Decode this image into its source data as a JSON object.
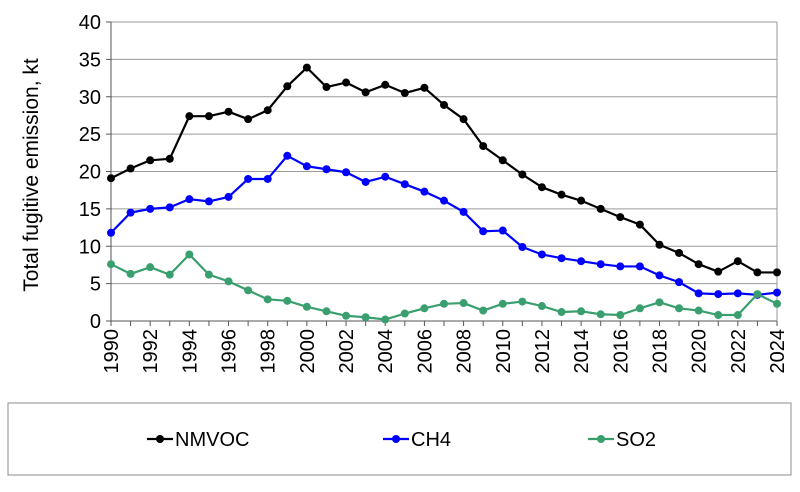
{
  "chart_data": {
    "type": "line",
    "title": "",
    "xlabel": "",
    "ylabel": "Total fugitive emission, kt",
    "ylim": [
      0,
      40
    ],
    "yticks": [
      0,
      5,
      10,
      15,
      20,
      25,
      30,
      35,
      40
    ],
    "xticks": [
      1990,
      1992,
      1994,
      1996,
      1998,
      2000,
      2002,
      2004,
      2006,
      2008,
      2010,
      2012,
      2014,
      2016,
      2018,
      2020,
      2022,
      2024
    ],
    "grid": "horizontal",
    "legend_position": "bottom",
    "x": [
      1990,
      1991,
      1992,
      1993,
      1994,
      1995,
      1996,
      1997,
      1998,
      1999,
      2000,
      2001,
      2002,
      2003,
      2004,
      2005,
      2006,
      2007,
      2008,
      2009,
      2010,
      2011,
      2012,
      2013,
      2014,
      2015,
      2016,
      2017,
      2018,
      2019,
      2020,
      2021,
      2022,
      2023,
      2024
    ],
    "series": [
      {
        "name": "NMVOC",
        "color": "#000000",
        "values": [
          19.1,
          20.4,
          21.5,
          21.7,
          27.4,
          27.4,
          28.0,
          27.0,
          28.2,
          31.4,
          33.9,
          31.3,
          31.9,
          30.6,
          31.6,
          30.5,
          31.2,
          28.9,
          27.0,
          23.4,
          21.5,
          19.6,
          17.9,
          16.9,
          16.1,
          15.0,
          13.9,
          12.9,
          10.2,
          9.1,
          7.6,
          6.6,
          8.0,
          6.5,
          6.5
        ]
      },
      {
        "name": "CH4",
        "color": "#0000ff",
        "values": [
          11.8,
          14.5,
          15.0,
          15.2,
          16.3,
          16.0,
          16.6,
          19.0,
          19.0,
          22.1,
          20.7,
          20.3,
          19.9,
          18.6,
          19.3,
          18.3,
          17.3,
          16.1,
          14.6,
          12.0,
          12.1,
          9.9,
          8.9,
          8.4,
          8.0,
          7.6,
          7.3,
          7.3,
          6.1,
          5.2,
          3.7,
          3.6,
          3.7,
          3.5,
          3.8
        ]
      },
      {
        "name": "SO2",
        "color": "#3a9f6e",
        "values": [
          7.6,
          6.3,
          7.2,
          6.2,
          8.9,
          6.2,
          5.3,
          4.1,
          2.9,
          2.7,
          1.9,
          1.3,
          0.7,
          0.5,
          0.2,
          1.0,
          1.7,
          2.3,
          2.4,
          1.4,
          2.3,
          2.6,
          2.0,
          1.2,
          1.3,
          0.9,
          0.8,
          1.7,
          2.5,
          1.7,
          1.4,
          0.8,
          0.8,
          3.6,
          2.3
        ]
      }
    ]
  }
}
